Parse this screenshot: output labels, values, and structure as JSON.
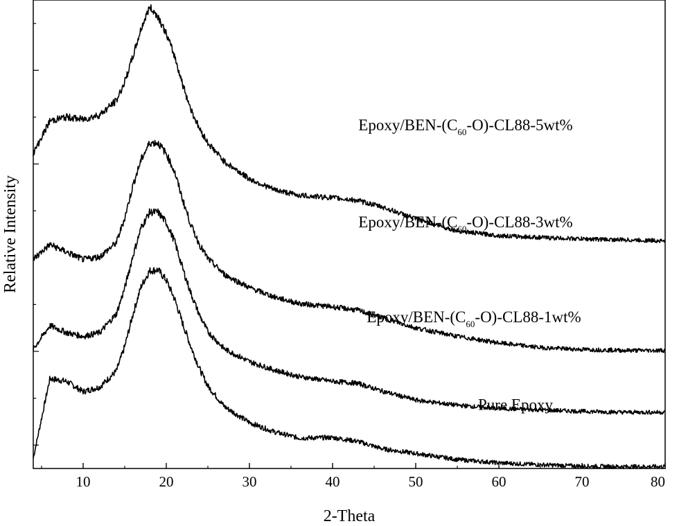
{
  "chart_data": {
    "type": "line",
    "title": "",
    "xlabel": "2-Theta",
    "ylabel": "Relative Intensity",
    "xlim": [
      4,
      80
    ],
    "xticks": [
      10,
      20,
      30,
      40,
      50,
      60,
      70,
      80
    ],
    "yticks_labeled": false,
    "ylim": [
      0,
      10
    ],
    "grid": false,
    "legend": "none",
    "series": [
      {
        "name": "Pure Epoxy",
        "label_parts": [
          "Pure Epoxy",
          "",
          ""
        ],
        "label_anchor": [
          62,
          1.25
        ],
        "color": "#000000",
        "x": [
          4,
          6,
          8,
          10,
          12,
          14,
          15,
          16,
          17,
          18,
          19,
          20,
          21,
          22,
          23,
          24,
          25,
          27,
          30,
          33,
          36,
          40,
          43,
          46,
          50,
          55,
          60,
          65,
          70,
          75,
          80
        ],
        "y": [
          0.22,
          1.92,
          1.86,
          1.64,
          1.74,
          2.08,
          2.6,
          3.3,
          3.9,
          4.22,
          4.24,
          4.02,
          3.62,
          3.08,
          2.58,
          2.13,
          1.76,
          1.32,
          0.98,
          0.78,
          0.65,
          0.66,
          0.58,
          0.42,
          0.32,
          0.19,
          0.12,
          0.08,
          0.05,
          0.04,
          0.04
        ]
      },
      {
        "name": "Epoxy/BEN-(C60-O)-CL88-1wt%",
        "label_parts": [
          "Epoxy/BEN-(C",
          "60",
          "-O)-CL88-1wt%"
        ],
        "label_anchor": [
          57,
          3.12
        ],
        "color": "#000000",
        "x": [
          4,
          6,
          8,
          10,
          12,
          14,
          15,
          16,
          17,
          18,
          19,
          20,
          21,
          22,
          23,
          24,
          25,
          27,
          30,
          33,
          36,
          40,
          43,
          46,
          50,
          55,
          60,
          65,
          70,
          75,
          80
        ],
        "y": [
          2.55,
          3.05,
          2.9,
          2.82,
          2.9,
          3.3,
          3.85,
          4.55,
          5.15,
          5.47,
          5.47,
          5.25,
          4.85,
          4.25,
          3.72,
          3.27,
          2.92,
          2.55,
          2.28,
          2.1,
          1.96,
          1.86,
          1.82,
          1.65,
          1.46,
          1.35,
          1.28,
          1.25,
          1.22,
          1.2,
          1.2
        ]
      },
      {
        "name": "Epoxy/BEN-(C60-O)-CL88-3wt%",
        "label_parts": [
          "Epoxy/BEN-(C",
          "60",
          "-O)-CL88-3wt%"
        ],
        "label_anchor": [
          56,
          5.15
        ],
        "color": "#000000",
        "x": [
          4,
          6,
          8,
          10,
          12,
          14,
          15,
          16,
          17,
          18,
          19,
          20,
          21,
          22,
          23,
          24,
          25,
          27,
          30,
          33,
          36,
          40,
          43,
          46,
          50,
          55,
          60,
          65,
          70,
          75,
          80
        ],
        "y": [
          4.47,
          4.78,
          4.62,
          4.46,
          4.52,
          4.82,
          5.35,
          6.05,
          6.6,
          6.95,
          6.95,
          6.72,
          6.33,
          5.72,
          5.18,
          4.78,
          4.48,
          4.14,
          3.86,
          3.66,
          3.52,
          3.45,
          3.38,
          3.22,
          3.0,
          2.82,
          2.68,
          2.58,
          2.54,
          2.52,
          2.52
        ]
      },
      {
        "name": "Epoxy/BEN-(C60-O)-CL88-5wt%",
        "label_parts": [
          "Epoxy/BEN-(C",
          "60",
          "-O)-CL88-5wt%"
        ],
        "label_anchor": [
          56,
          7.22
        ],
        "color": "#000000",
        "x": [
          4,
          6,
          8,
          10,
          12,
          14,
          15,
          16,
          17,
          18,
          19,
          20,
          21,
          22,
          23,
          24,
          25,
          27,
          30,
          33,
          36,
          40,
          43,
          46,
          50,
          55,
          60,
          65,
          70,
          75,
          80
        ],
        "y": [
          6.72,
          7.42,
          7.5,
          7.45,
          7.55,
          7.85,
          8.25,
          8.8,
          9.4,
          9.85,
          9.65,
          9.28,
          8.8,
          8.18,
          7.65,
          7.25,
          6.95,
          6.55,
          6.18,
          5.95,
          5.83,
          5.78,
          5.72,
          5.58,
          5.33,
          5.07,
          4.97,
          4.93,
          4.9,
          4.88,
          4.86
        ]
      }
    ]
  }
}
